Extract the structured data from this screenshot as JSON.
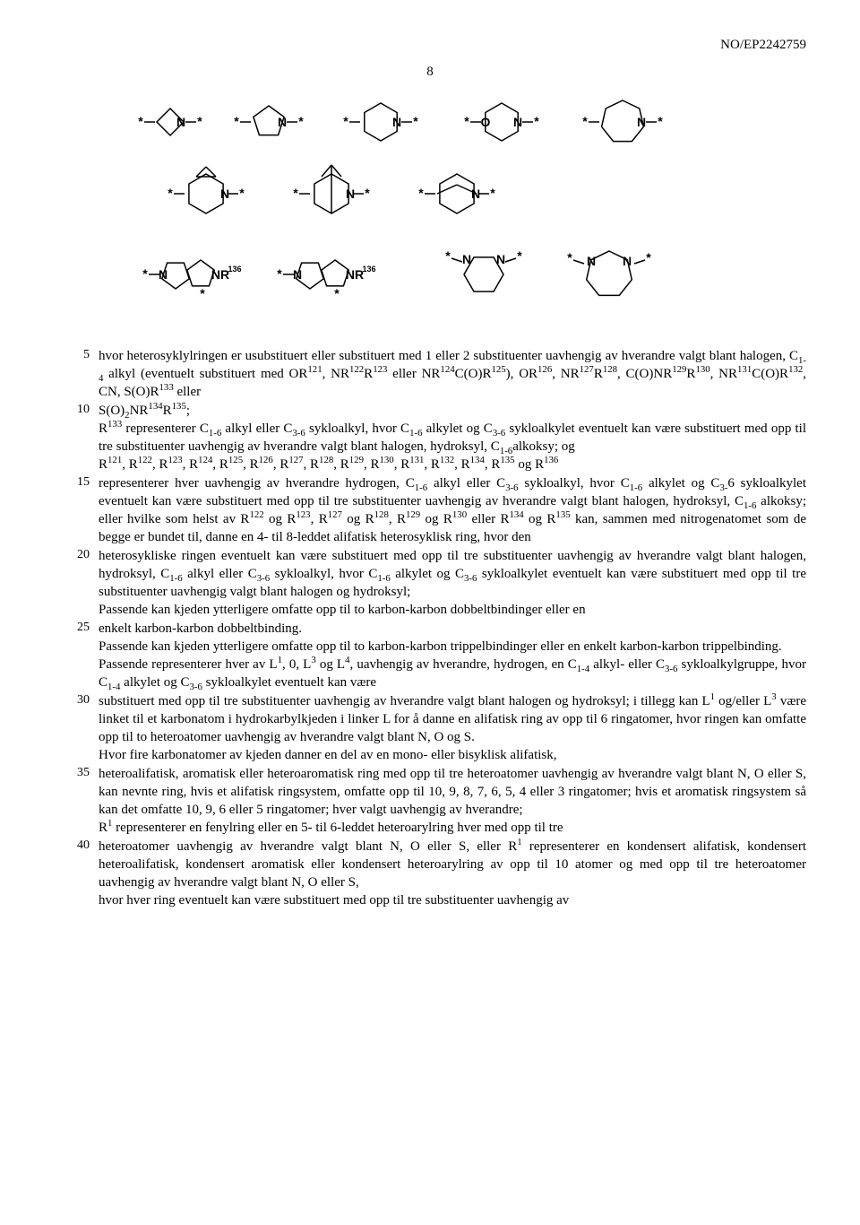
{
  "header": {
    "doc_ref": "NO/EP2242759",
    "page_number": "8"
  },
  "line_numbers": [
    "5",
    "10",
    "15",
    "20",
    "25",
    "30",
    "35",
    "40"
  ],
  "diagram": {
    "rows": [
      {
        "rings": [
          {
            "type": "4",
            "label": "N",
            "stars": 2
          },
          {
            "type": "5",
            "label": "N",
            "stars": 2
          },
          {
            "type": "6",
            "label": "N",
            "stars": 2
          },
          {
            "type": "6o",
            "label": "N",
            "o": "O",
            "stars": 2
          },
          {
            "type": "7",
            "label": "N",
            "stars": 2
          }
        ]
      },
      {
        "rings": [
          {
            "type": "bicyc1",
            "label": "N",
            "stars": 2
          },
          {
            "type": "bicyc2",
            "label": "N",
            "stars": 2
          },
          {
            "type": "bicyc3",
            "label": "N",
            "stars": 2
          }
        ]
      },
      {
        "rings": [
          {
            "type": "fused",
            "label": "N",
            "sub": "NR",
            "supn": "136",
            "stars": 2
          },
          {
            "type": "fused",
            "label": "N",
            "sub": "NR",
            "supn": "136",
            "stars": 2
          },
          {
            "type": "6pair",
            "l1": "N",
            "l2": "N",
            "stars": 2
          },
          {
            "type": "7pair",
            "l1": "N",
            "l2": "N",
            "stars": 2
          }
        ]
      }
    ],
    "stroke": "#000000",
    "fill": "none",
    "stroke_width": 1.5,
    "font_family": "Arial, sans-serif",
    "font_size_label": 14,
    "font_size_sup": 9
  }
}
